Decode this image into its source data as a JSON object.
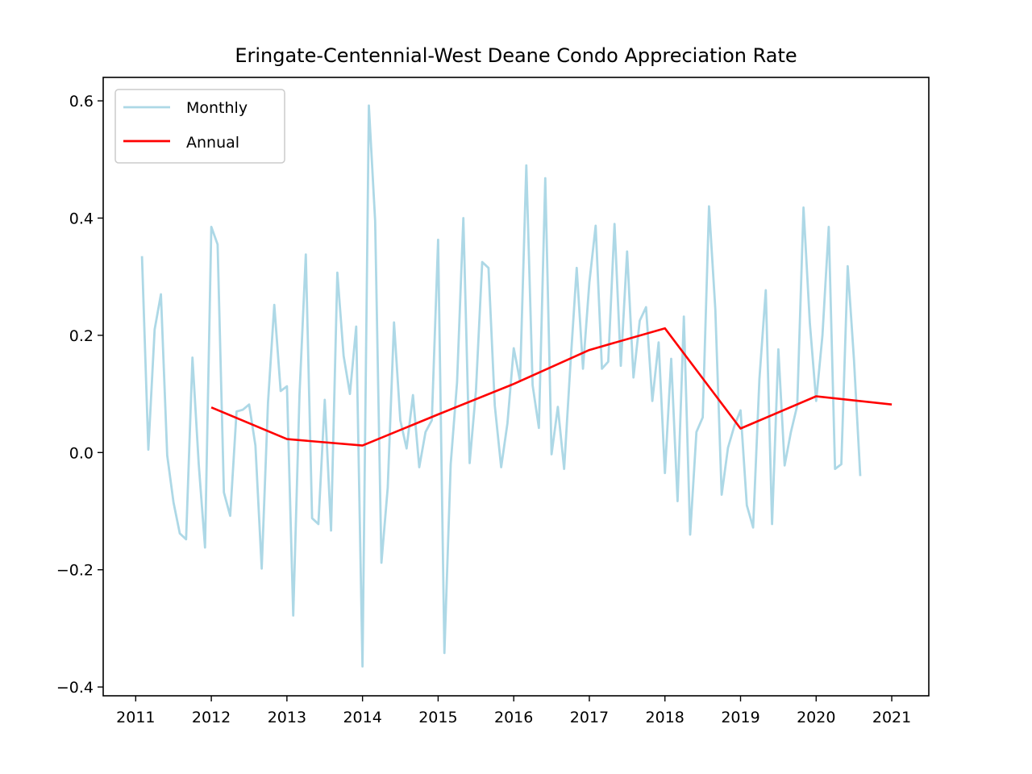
{
  "chart_data": {
    "type": "line",
    "title": "Eringate-Centennial-West Deane Condo Appreciation Rate",
    "xlabel": "",
    "ylabel": "",
    "xlim": [
      2010.57,
      2021.49
    ],
    "ylim": [
      -0.415,
      0.64
    ],
    "x_ticks": [
      "2011",
      "2012",
      "2013",
      "2014",
      "2015",
      "2016",
      "2017",
      "2018",
      "2019",
      "2020",
      "2021"
    ],
    "y_ticks": [
      -0.4,
      -0.2,
      0.0,
      0.2,
      0.4,
      0.6
    ],
    "y_tick_labels": [
      "−0.4",
      "−0.2",
      "0.0",
      "0.2",
      "0.4",
      "0.6"
    ],
    "grid": false,
    "legend_position": "top-left",
    "series": [
      {
        "name": "Monthly",
        "color": "#add8e6",
        "x_start": "2011-02",
        "x_step": "monthly",
        "values": [
          0.335,
          0.005,
          0.21,
          0.27,
          -0.005,
          -0.085,
          -0.138,
          -0.148,
          0.162,
          -0.02,
          -0.162,
          0.385,
          0.355,
          -0.068,
          -0.108,
          0.07,
          0.073,
          0.082,
          0.012,
          -0.198,
          0.085,
          0.252,
          0.105,
          0.113,
          -0.278,
          0.1,
          0.338,
          -0.112,
          -0.122,
          0.09,
          -0.133,
          0.307,
          0.165,
          0.1,
          0.215,
          -0.365,
          0.592,
          0.395,
          -0.188,
          -0.06,
          0.222,
          0.055,
          0.007,
          0.098,
          -0.025,
          0.035,
          0.055,
          0.363,
          -0.342,
          -0.02,
          0.12,
          0.4,
          -0.018,
          0.105,
          0.325,
          0.315,
          0.08,
          -0.025,
          0.05,
          0.178,
          0.122,
          0.49,
          0.115,
          0.042,
          0.468,
          -0.003,
          0.078,
          -0.028,
          0.15,
          0.315,
          0.143,
          0.29,
          0.387,
          0.143,
          0.155,
          0.39,
          0.148,
          0.343,
          0.128,
          0.225,
          0.248,
          0.088,
          0.188,
          -0.035,
          0.16,
          -0.083,
          0.232,
          -0.14,
          0.035,
          0.06,
          0.42,
          0.245,
          -0.072,
          0.008,
          0.045,
          0.072,
          -0.09,
          -0.128,
          0.125,
          0.277,
          -0.122,
          0.176,
          -0.022,
          0.035,
          0.08,
          0.418,
          0.22,
          0.088,
          0.2,
          0.385,
          -0.028,
          -0.02,
          0.318,
          0.158,
          -0.04
        ]
      },
      {
        "name": "Annual",
        "color": "#ff0000",
        "x": [
          2012,
          2013,
          2014,
          2015,
          2016,
          2017,
          2018,
          2019,
          2020,
          2021
        ],
        "values": [
          0.077,
          0.023,
          0.012,
          0.065,
          0.117,
          0.175,
          0.212,
          0.041,
          0.096,
          0.082
        ]
      }
    ]
  }
}
